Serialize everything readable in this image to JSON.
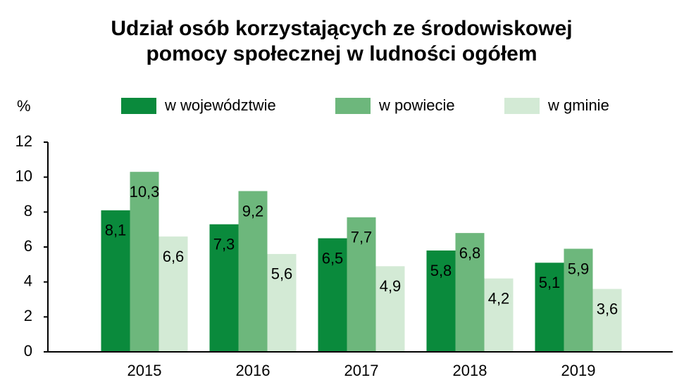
{
  "chart_data": {
    "type": "bar",
    "title": [
      "Udział osób korzystających ze środowiskowej",
      "pomocy społecznej w ludności ogółem"
    ],
    "y_label": "%",
    "categories": [
      "2015",
      "2016",
      "2017",
      "2018",
      "2019"
    ],
    "series": [
      {
        "name": "w województwie",
        "color": "#0a8a3c",
        "values": [
          8.1,
          7.3,
          6.5,
          5.8,
          5.1
        ],
        "value_labels": [
          "8,1",
          "7,3",
          "6,5",
          "5,8",
          "5,1"
        ]
      },
      {
        "name": "w powiecie",
        "color": "#6db77c",
        "values": [
          10.3,
          9.2,
          7.7,
          6.8,
          5.9
        ],
        "value_labels": [
          "10,3",
          "9,2",
          "7,7",
          "6,8",
          "5,9"
        ]
      },
      {
        "name": "w gminie",
        "color": "#d3ead5",
        "values": [
          6.6,
          5.6,
          4.9,
          4.2,
          3.6
        ],
        "value_labels": [
          "6,6",
          "5,6",
          "4,9",
          "4,2",
          "3,6"
        ]
      }
    ],
    "ylim": [
      0,
      12
    ],
    "yticks": [
      0,
      2,
      4,
      6,
      8,
      10,
      12
    ],
    "legend": "top"
  }
}
